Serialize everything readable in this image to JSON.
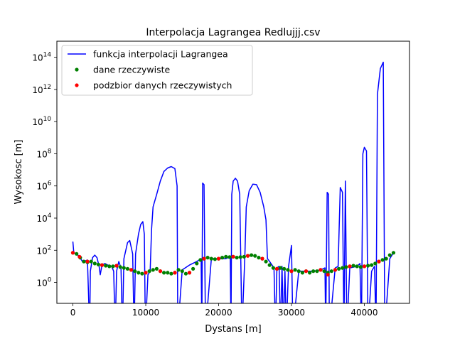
{
  "chart_data": {
    "type": "line",
    "title": "Interpolacja Lagrangea Redlujjj.csv",
    "xlabel": "Dystans [m]",
    "ylabel": "Wysokosc [m]",
    "xlim": [
      -2200,
      46200
    ],
    "ylim": [
      0.05,
      1000000000000000.0
    ],
    "yscale": "log",
    "grid": false,
    "legend_position": "top-left",
    "x_ticks": [
      0,
      10000,
      20000,
      30000,
      40000
    ],
    "x_tick_labels": [
      "0",
      "10000",
      "20000",
      "30000",
      "40000"
    ],
    "y_ticks": [
      1,
      100,
      10000,
      1000000,
      100000000,
      10000000000,
      1000000000000,
      100000000000000
    ],
    "y_tick_base": "10",
    "y_tick_exponents": [
      "0",
      "2",
      "4",
      "6",
      "8",
      "10",
      "12",
      "14"
    ],
    "legend": [
      {
        "label": "funkcja interpolacji Lagrangea",
        "kind": "line",
        "color": "#0000ff"
      },
      {
        "label": "dane rzeczywiste",
        "kind": "point",
        "color": "#008000"
      },
      {
        "label": "podzbior danych rzeczywistych",
        "kind": "point",
        "color": "#ff0000"
      }
    ],
    "series": [
      {
        "name": "funkcja interpolacji Lagrangea",
        "color": "#0000ff",
        "style": "line",
        "points": [
          [
            0,
            350
          ],
          [
            120,
            70
          ],
          [
            500,
            60
          ],
          [
            900,
            40
          ],
          [
            1300,
            20
          ],
          [
            1700,
            22
          ],
          [
            2000,
            25
          ],
          [
            2300,
            0.001
          ],
          [
            2400,
            5
          ],
          [
            2700,
            35
          ],
          [
            3000,
            50
          ],
          [
            3300,
            35
          ],
          [
            3600,
            10
          ],
          [
            3750,
            3
          ],
          [
            4000,
            12
          ],
          [
            4400,
            15
          ],
          [
            4800,
            12
          ],
          [
            5300,
            10
          ],
          [
            5600,
            5
          ],
          [
            5800,
            0.001
          ],
          [
            6000,
            5
          ],
          [
            6300,
            20
          ],
          [
            6600,
            8
          ],
          [
            6800,
            0.001
          ],
          [
            7000,
            30
          ],
          [
            7500,
            300
          ],
          [
            7800,
            400
          ],
          [
            8200,
            60
          ],
          [
            8400,
            0.001
          ],
          [
            8600,
            60
          ],
          [
            9000,
            1000
          ],
          [
            9300,
            4000
          ],
          [
            9600,
            6000
          ],
          [
            9800,
            1000
          ],
          [
            9950,
            0.001
          ],
          [
            10300,
            3
          ],
          [
            10600,
            5
          ],
          [
            10800,
            2000
          ],
          [
            11000,
            50000
          ],
          [
            11500,
            300000
          ],
          [
            12000,
            2000000
          ],
          [
            12500,
            8000000
          ],
          [
            13000,
            13000000
          ],
          [
            13500,
            16000000
          ],
          [
            14000,
            12000000
          ],
          [
            14300,
            1000000
          ],
          [
            14400,
            0.001
          ],
          [
            15000,
            6
          ],
          [
            16000,
            12
          ],
          [
            17000,
            20
          ],
          [
            17600,
            30
          ],
          [
            17700,
            0.001
          ],
          [
            17800,
            1500000
          ],
          [
            18000,
            1200000
          ],
          [
            18200,
            0.001
          ],
          [
            19000,
            30
          ],
          [
            20000,
            30
          ],
          [
            21000,
            30
          ],
          [
            21600,
            40
          ],
          [
            21700,
            0.001
          ],
          [
            21800,
            300000
          ],
          [
            22000,
            2000000
          ],
          [
            22300,
            3000000
          ],
          [
            22600,
            2000000
          ],
          [
            22900,
            300000
          ],
          [
            23200,
            0.001
          ],
          [
            23600,
            40
          ],
          [
            23800,
            50000
          ],
          [
            24200,
            500000
          ],
          [
            24700,
            1300000
          ],
          [
            25200,
            1200000
          ],
          [
            25700,
            400000
          ],
          [
            26200,
            50000
          ],
          [
            26500,
            8000
          ],
          [
            26700,
            30
          ],
          [
            27000,
            20
          ],
          [
            27600,
            8
          ],
          [
            27800,
            0.001
          ],
          [
            28000,
            8
          ],
          [
            28300,
            10
          ],
          [
            28500,
            0.001
          ],
          [
            28700,
            10
          ],
          [
            28900,
            0.001
          ],
          [
            29100,
            5
          ],
          [
            29300,
            0.001
          ],
          [
            29600,
            10
          ],
          [
            30000,
            200
          ],
          [
            30200,
            0.001
          ],
          [
            31000,
            5
          ],
          [
            32000,
            5
          ],
          [
            33000,
            5
          ],
          [
            34000,
            6
          ],
          [
            34600,
            8
          ],
          [
            34700,
            0.001
          ],
          [
            34900,
            400000
          ],
          [
            35100,
            300000
          ],
          [
            35200,
            0.001
          ],
          [
            36000,
            8
          ],
          [
            36400,
            10
          ],
          [
            36700,
            800000
          ],
          [
            37000,
            400000
          ],
          [
            37200,
            0.001
          ],
          [
            37400,
            2000000
          ],
          [
            37600,
            0.001
          ],
          [
            38000,
            8
          ],
          [
            39000,
            10
          ],
          [
            39400,
            15
          ],
          [
            39600,
            0.001
          ],
          [
            39800,
            100000000
          ],
          [
            40000,
            250000000
          ],
          [
            40300,
            150000000
          ],
          [
            40500,
            0.001
          ],
          [
            41000,
            5
          ],
          [
            41400,
            10
          ],
          [
            41600,
            0.001
          ],
          [
            41800,
            500000000000
          ],
          [
            42200,
            20000000000000
          ],
          [
            42600,
            50000000000000
          ],
          [
            42800,
            0.001
          ],
          [
            43500,
            30
          ],
          [
            44000,
            70
          ]
        ]
      },
      {
        "name": "dane rzeczywiste",
        "color": "#008000",
        "style": "scatter",
        "points": [
          [
            0,
            70
          ],
          [
            500,
            60
          ],
          [
            1000,
            35
          ],
          [
            1500,
            20
          ],
          [
            2000,
            18
          ],
          [
            2500,
            20
          ],
          [
            3000,
            15
          ],
          [
            3500,
            13
          ],
          [
            4000,
            12
          ],
          [
            4500,
            11
          ],
          [
            5000,
            10
          ],
          [
            5500,
            10
          ],
          [
            6000,
            11
          ],
          [
            6500,
            9
          ],
          [
            7000,
            8
          ],
          [
            7500,
            7
          ],
          [
            8000,
            6
          ],
          [
            8500,
            5
          ],
          [
            9000,
            4
          ],
          [
            9500,
            3.5
          ],
          [
            10000,
            4
          ],
          [
            10500,
            5
          ],
          [
            11000,
            6
          ],
          [
            11500,
            7
          ],
          [
            12000,
            5
          ],
          [
            12500,
            4
          ],
          [
            13000,
            4
          ],
          [
            13500,
            3.5
          ],
          [
            14000,
            4
          ],
          [
            14500,
            6
          ],
          [
            15000,
            5
          ],
          [
            15500,
            3.5
          ],
          [
            16000,
            4
          ],
          [
            16500,
            7
          ],
          [
            17000,
            15
          ],
          [
            17500,
            25
          ],
          [
            18000,
            30
          ],
          [
            18500,
            35
          ],
          [
            19000,
            30
          ],
          [
            19500,
            28
          ],
          [
            20000,
            30
          ],
          [
            20500,
            35
          ],
          [
            21000,
            40
          ],
          [
            21500,
            38
          ],
          [
            22000,
            40
          ],
          [
            22500,
            35
          ],
          [
            23000,
            38
          ],
          [
            23500,
            40
          ],
          [
            24000,
            45
          ],
          [
            24500,
            50
          ],
          [
            25000,
            45
          ],
          [
            25500,
            35
          ],
          [
            26000,
            30
          ],
          [
            26500,
            20
          ],
          [
            27000,
            12
          ],
          [
            27500,
            8
          ],
          [
            28000,
            7
          ],
          [
            28500,
            8
          ],
          [
            29000,
            7
          ],
          [
            29500,
            6
          ],
          [
            30000,
            5
          ],
          [
            30500,
            6
          ],
          [
            31000,
            5
          ],
          [
            31500,
            4
          ],
          [
            32000,
            5
          ],
          [
            32500,
            4
          ],
          [
            33000,
            5
          ],
          [
            33500,
            5
          ],
          [
            34000,
            6
          ],
          [
            34500,
            5
          ],
          [
            35000,
            4
          ],
          [
            35500,
            5
          ],
          [
            36000,
            6
          ],
          [
            36500,
            7
          ],
          [
            37000,
            8
          ],
          [
            37500,
            9
          ],
          [
            38000,
            10
          ],
          [
            38500,
            11
          ],
          [
            39000,
            10
          ],
          [
            39500,
            9
          ],
          [
            40000,
            10
          ],
          [
            40500,
            11
          ],
          [
            41000,
            12
          ],
          [
            41500,
            15
          ],
          [
            42000,
            20
          ],
          [
            42500,
            25
          ],
          [
            43000,
            30
          ],
          [
            43500,
            50
          ],
          [
            44000,
            70
          ]
        ]
      },
      {
        "name": "podzbior danych rzeczywistych",
        "color": "#ff0000",
        "style": "scatter",
        "points": [
          [
            0,
            70
          ],
          [
            900,
            40
          ],
          [
            2000,
            20
          ],
          [
            4000,
            12
          ],
          [
            6000,
            11
          ],
          [
            8000,
            6
          ],
          [
            10000,
            4
          ],
          [
            12000,
            5
          ],
          [
            14000,
            4
          ],
          [
            16000,
            4
          ],
          [
            18000,
            30
          ],
          [
            20000,
            30
          ],
          [
            22000,
            40
          ],
          [
            24000,
            45
          ],
          [
            26000,
            30
          ],
          [
            28000,
            7
          ],
          [
            30000,
            5
          ],
          [
            32000,
            5
          ],
          [
            34000,
            6
          ],
          [
            35000,
            3
          ],
          [
            36000,
            6
          ],
          [
            38000,
            10
          ],
          [
            40000,
            10
          ],
          [
            42000,
            20
          ]
        ]
      }
    ]
  }
}
